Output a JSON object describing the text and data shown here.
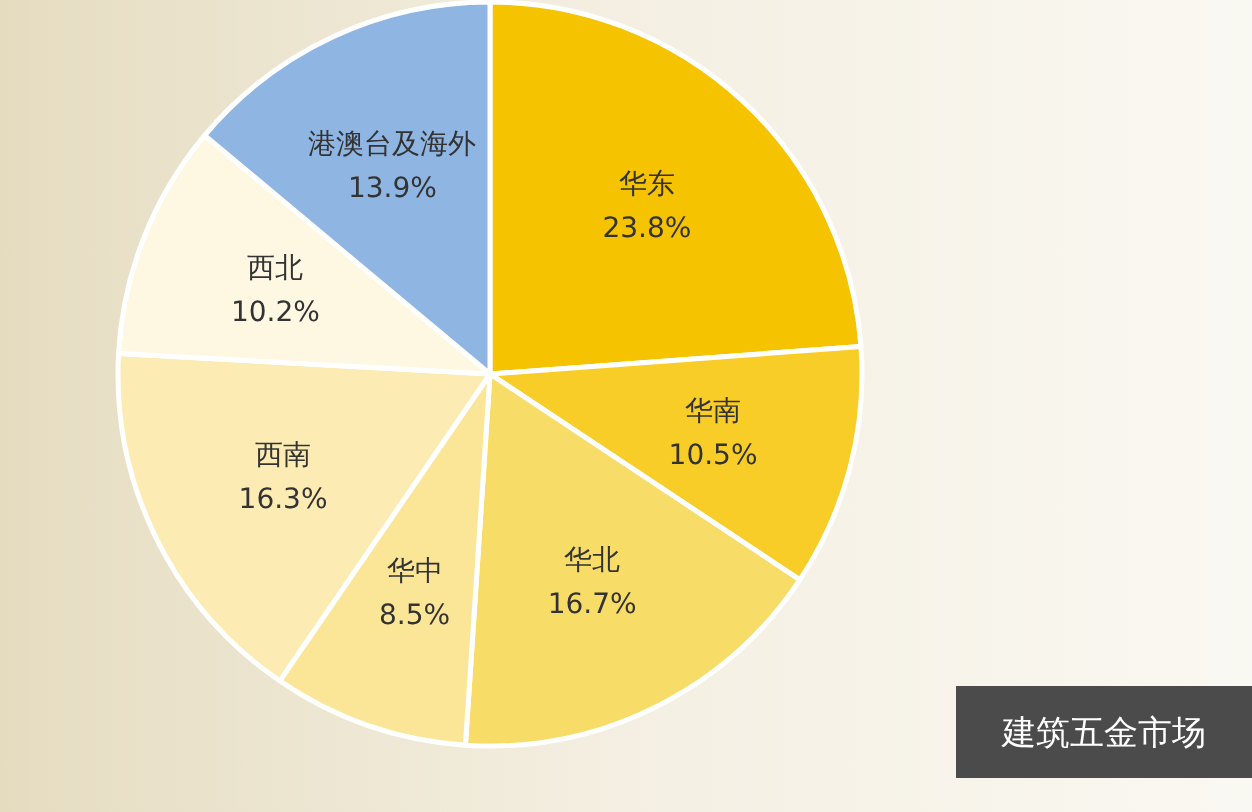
{
  "chart_data": {
    "type": "pie",
    "categories": [
      "华东",
      "华南",
      "华北",
      "华中",
      "西南",
      "西北",
      "港澳台及海外"
    ],
    "values": [
      23.8,
      10.5,
      16.7,
      8.5,
      16.3,
      10.2,
      13.9
    ],
    "colors": [
      "#f6c300",
      "#f9cd28",
      "#f8dc68",
      "#fbe697",
      "#fcecb4",
      "#fef8e3",
      "#8fb5e3"
    ],
    "value_labels": [
      "23.8%",
      "10.5%",
      "16.7%",
      "8.5%",
      "16.3%",
      "10.2%",
      "13.9%"
    ],
    "annotations": [
      "建筑五金市场"
    ]
  }
}
